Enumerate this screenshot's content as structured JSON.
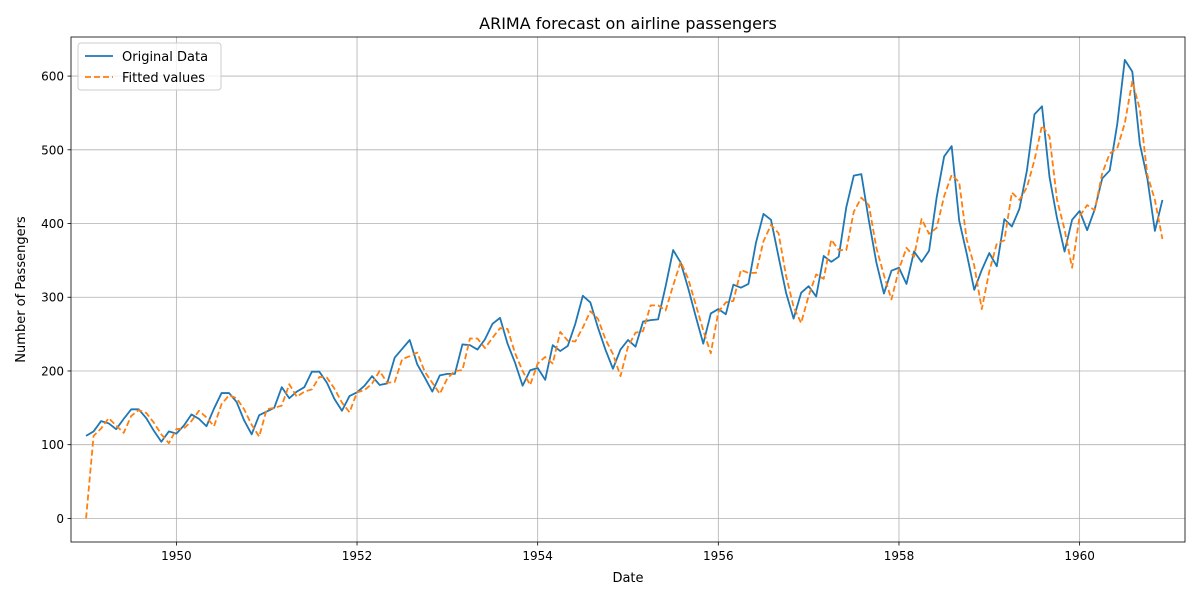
{
  "chart_data": {
    "type": "line",
    "title": "ARIMA forecast on airline passengers",
    "xlabel": "Date",
    "ylabel": "Number of Passengers",
    "xlim": [
      "1948-11",
      "1961-03"
    ],
    "ylim": [
      -32,
      653
    ],
    "grid": true,
    "legend_position": "top-left",
    "x_ticks": [
      "1950",
      "1952",
      "1954",
      "1956",
      "1958",
      "1960"
    ],
    "y_ticks": [
      "0",
      "100",
      "200",
      "300",
      "400",
      "500",
      "600"
    ],
    "x": [
      "1949-01",
      "1949-02",
      "1949-03",
      "1949-04",
      "1949-05",
      "1949-06",
      "1949-07",
      "1949-08",
      "1949-09",
      "1949-10",
      "1949-11",
      "1949-12",
      "1950-01",
      "1950-02",
      "1950-03",
      "1950-04",
      "1950-05",
      "1950-06",
      "1950-07",
      "1950-08",
      "1950-09",
      "1950-10",
      "1950-11",
      "1950-12",
      "1951-01",
      "1951-02",
      "1951-03",
      "1951-04",
      "1951-05",
      "1951-06",
      "1951-07",
      "1951-08",
      "1951-09",
      "1951-10",
      "1951-11",
      "1951-12",
      "1952-01",
      "1952-02",
      "1952-03",
      "1952-04",
      "1952-05",
      "1952-06",
      "1952-07",
      "1952-08",
      "1952-09",
      "1952-10",
      "1952-11",
      "1952-12",
      "1953-01",
      "1953-02",
      "1953-03",
      "1953-04",
      "1953-05",
      "1953-06",
      "1953-07",
      "1953-08",
      "1953-09",
      "1953-10",
      "1953-11",
      "1953-12",
      "1954-01",
      "1954-02",
      "1954-03",
      "1954-04",
      "1954-05",
      "1954-06",
      "1954-07",
      "1954-08",
      "1954-09",
      "1954-10",
      "1954-11",
      "1954-12",
      "1955-01",
      "1955-02",
      "1955-03",
      "1955-04",
      "1955-05",
      "1955-06",
      "1955-07",
      "1955-08",
      "1955-09",
      "1955-10",
      "1955-11",
      "1955-12",
      "1956-01",
      "1956-02",
      "1956-03",
      "1956-04",
      "1956-05",
      "1956-06",
      "1956-07",
      "1956-08",
      "1956-09",
      "1956-10",
      "1956-11",
      "1956-12",
      "1957-01",
      "1957-02",
      "1957-03",
      "1957-04",
      "1957-05",
      "1957-06",
      "1957-07",
      "1957-08",
      "1957-09",
      "1957-10",
      "1957-11",
      "1957-12",
      "1958-01",
      "1958-02",
      "1958-03",
      "1958-04",
      "1958-05",
      "1958-06",
      "1958-07",
      "1958-08",
      "1958-09",
      "1958-10",
      "1958-11",
      "1958-12",
      "1959-01",
      "1959-02",
      "1959-03",
      "1959-04",
      "1959-05",
      "1959-06",
      "1959-07",
      "1959-08",
      "1959-09",
      "1959-10",
      "1959-11",
      "1959-12",
      "1960-01",
      "1960-02",
      "1960-03",
      "1960-04",
      "1960-05",
      "1960-06",
      "1960-07",
      "1960-08",
      "1960-09",
      "1960-10",
      "1960-11",
      "1960-12"
    ],
    "series": [
      {
        "name": "Original Data",
        "color": "#1f77b4",
        "dash": "solid",
        "values": [
          112,
          118,
          132,
          129,
          121,
          135,
          148,
          148,
          136,
          119,
          104,
          118,
          115,
          126,
          141,
          135,
          125,
          149,
          170,
          170,
          158,
          133,
          114,
          140,
          145,
          150,
          178,
          163,
          172,
          178,
          199,
          199,
          184,
          162,
          146,
          166,
          171,
          180,
          193,
          181,
          183,
          218,
          230,
          242,
          209,
          191,
          172,
          194,
          196,
          196,
          236,
          235,
          229,
          243,
          264,
          272,
          237,
          211,
          180,
          201,
          204,
          188,
          235,
          227,
          234,
          264,
          302,
          293,
          259,
          229,
          203,
          229,
          242,
          233,
          267,
          269,
          270,
          315,
          364,
          347,
          312,
          274,
          237,
          278,
          284,
          277,
          317,
          313,
          318,
          374,
          413,
          405,
          355,
          306,
          271,
          306,
          315,
          301,
          356,
          348,
          355,
          422,
          465,
          467,
          404,
          347,
          305,
          336,
          340,
          318,
          362,
          348,
          363,
          435,
          491,
          505,
          404,
          359,
          310,
          337,
          360,
          342,
          406,
          396,
          420,
          472,
          548,
          559,
          463,
          407,
          362,
          405,
          417,
          391,
          419,
          461,
          472,
          535,
          622,
          606,
          508,
          461,
          390,
          432
        ]
      },
      {
        "name": "Fitted values",
        "color": "#ff7f0e",
        "dash": "dashed",
        "values": [
          0,
          112,
          122,
          136,
          126,
          116,
          139,
          147,
          143,
          130,
          114,
          102,
          121,
          122,
          132,
          146,
          137,
          125,
          155,
          167,
          163,
          148,
          127,
          111,
          148,
          150,
          153,
          182,
          165,
          172,
          175,
          192,
          191,
          176,
          157,
          144,
          171,
          174,
          183,
          200,
          184,
          185,
          216,
          220,
          225,
          199,
          184,
          169,
          190,
          200,
          201,
          244,
          244,
          231,
          245,
          258,
          257,
          224,
          200,
          181,
          210,
          219,
          210,
          253,
          241,
          240,
          259,
          281,
          271,
          243,
          223,
          193,
          233,
          252,
          254,
          289,
          289,
          282,
          316,
          348,
          325,
          290,
          255,
          224,
          280,
          293,
          295,
          337,
          333,
          333,
          376,
          398,
          387,
          329,
          287,
          265,
          302,
          331,
          325,
          378,
          364,
          364,
          416,
          435,
          425,
          367,
          330,
          297,
          338,
          367,
          355,
          406,
          386,
          394,
          437,
          466,
          456,
          378,
          343,
          284,
          335,
          373,
          377,
          442,
          432,
          449,
          486,
          533,
          518,
          432,
          392,
          340,
          410,
          425,
          418,
          468,
          495,
          502,
          536,
          593,
          555,
          466,
          432,
          379
        ]
      }
    ]
  }
}
